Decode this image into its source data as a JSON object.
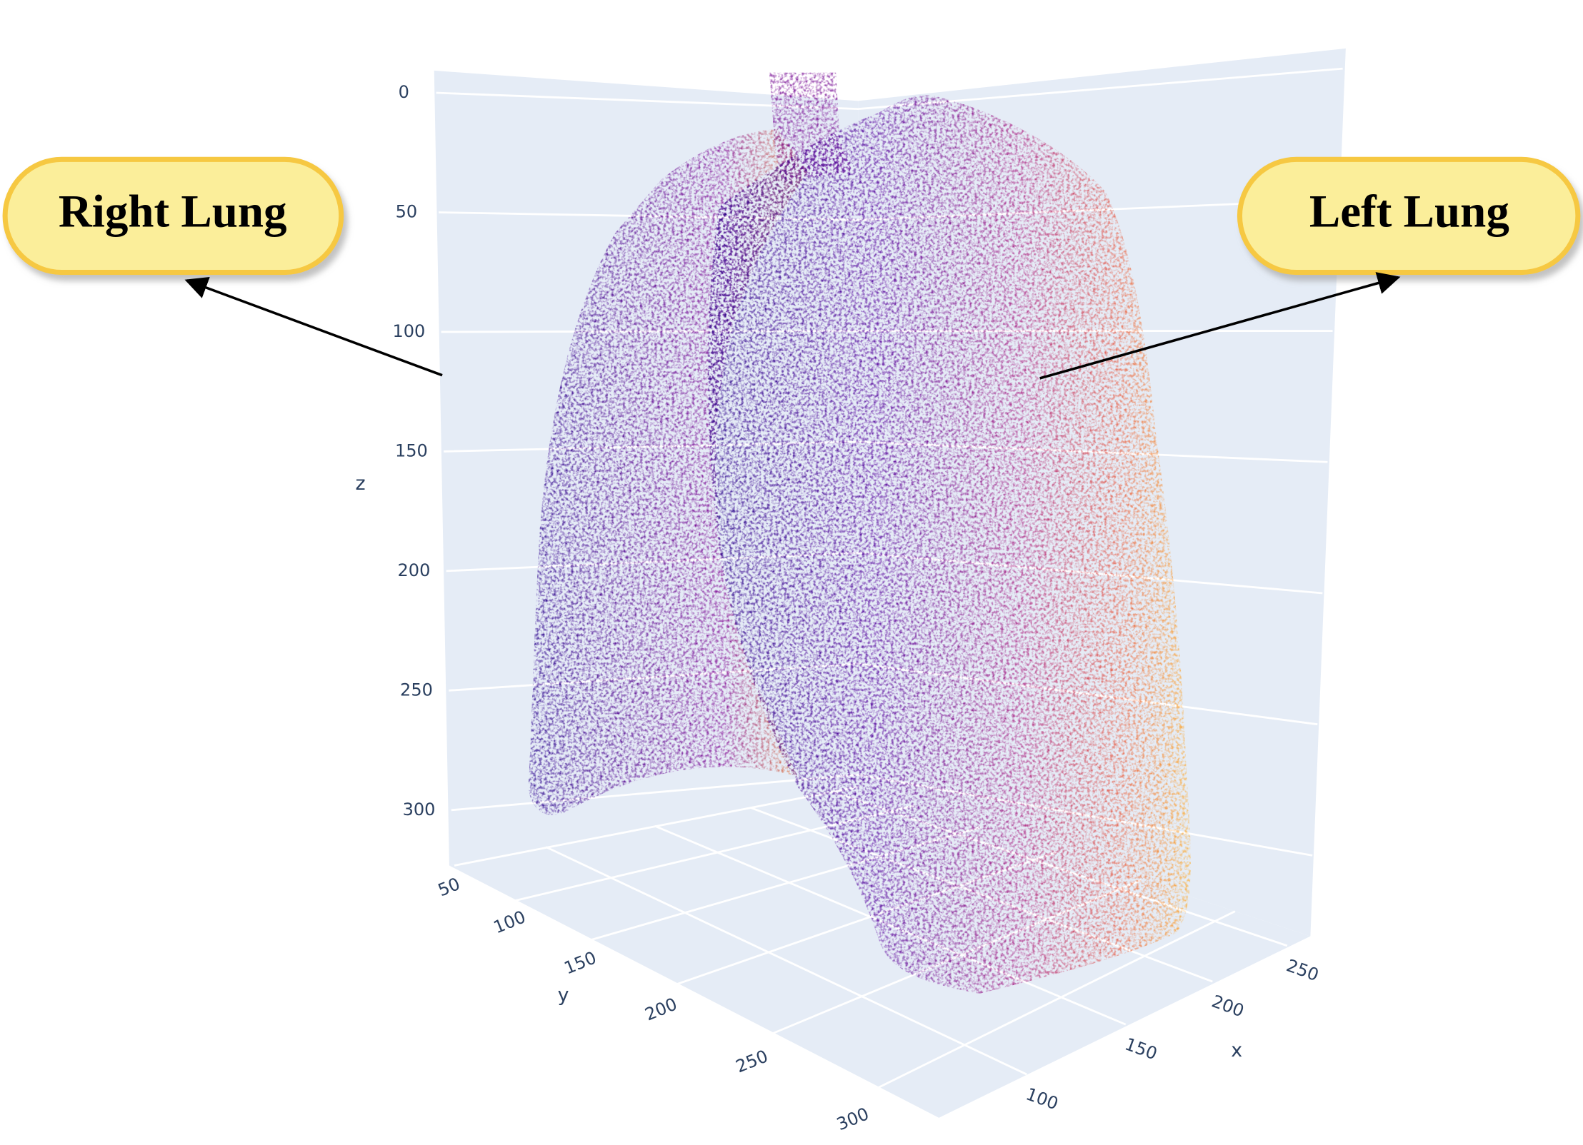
{
  "chart_data": {
    "type": "scatter3d",
    "annotations": [
      "Right Lung",
      "Left Lung"
    ],
    "x_label": "x",
    "y_label": "y",
    "z_label": "z",
    "xticks": [
      100,
      150,
      200,
      250
    ],
    "yticks": [
      50,
      100,
      150,
      200,
      250,
      300
    ],
    "zticks": [
      0,
      50,
      100,
      150,
      200,
      250,
      300
    ]
  }
}
